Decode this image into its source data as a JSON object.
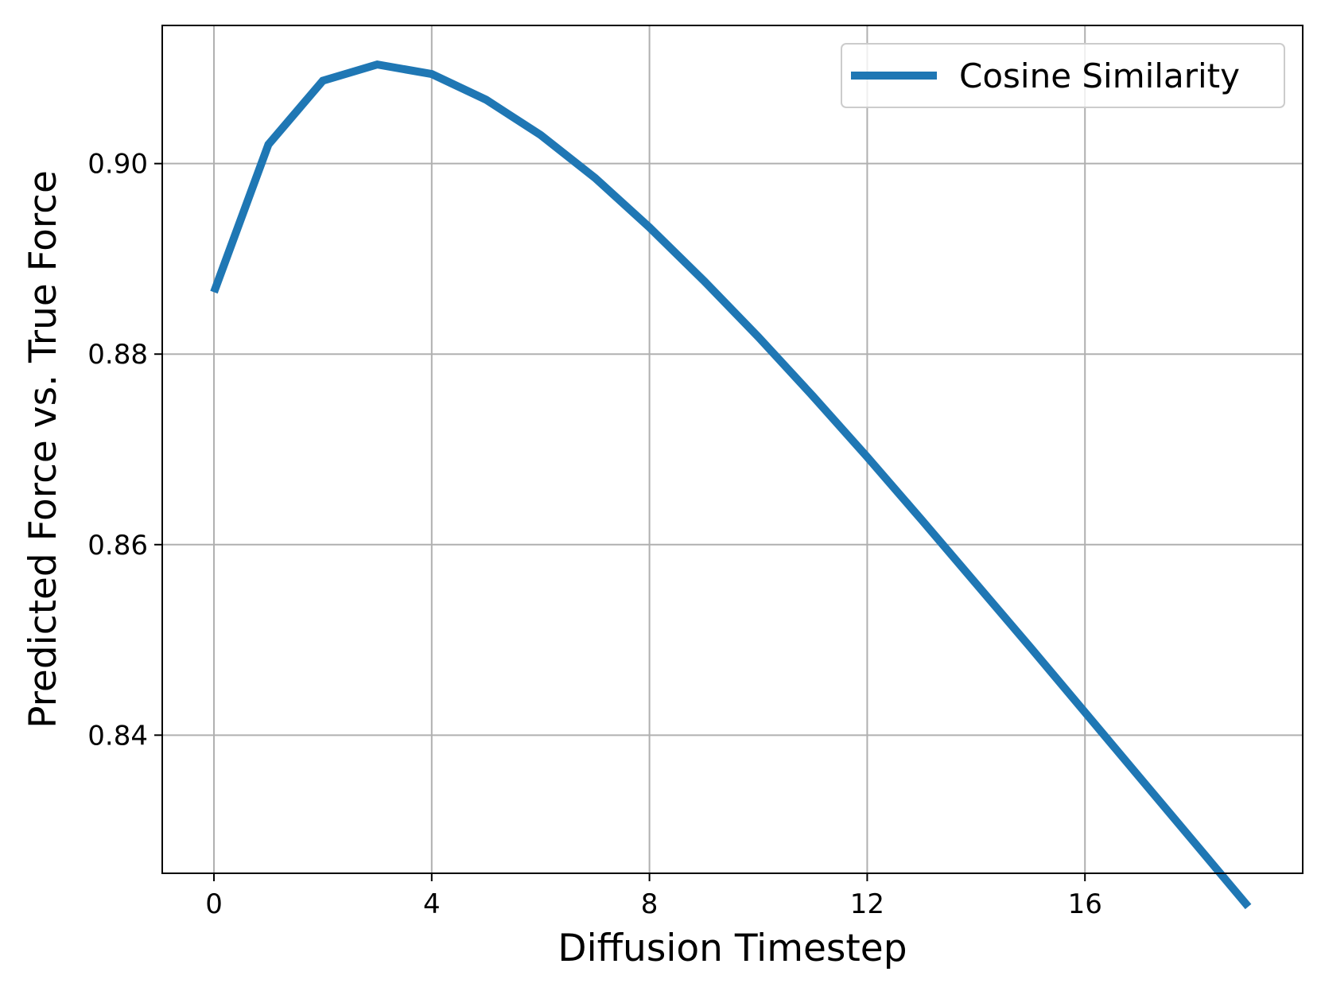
{
  "chart_data": {
    "type": "line",
    "title": "",
    "xlabel": "Diffusion Timestep",
    "ylabel": "Predicted Force vs. True Force",
    "xlim": [
      -0.95,
      20
    ],
    "ylim": [
      0.8255,
      0.9145
    ],
    "x_ticks": [
      0,
      4,
      8,
      12,
      16
    ],
    "x_tick_labels": [
      "0",
      "4",
      "8",
      "12",
      "16"
    ],
    "y_ticks": [
      0.84,
      0.86,
      0.88,
      0.9
    ],
    "y_tick_labels": [
      "0.84",
      "0.86",
      "0.88",
      "0.90"
    ],
    "grid": true,
    "legend_position": "top-right",
    "series": [
      {
        "name": "Cosine Similarity",
        "color": "#1f77b4",
        "x": [
          0,
          1,
          2,
          3,
          4,
          5,
          6,
          7,
          8,
          9,
          10,
          11,
          12,
          13,
          14,
          15,
          16,
          17,
          18,
          19
        ],
        "y": [
          0.8865,
          0.902,
          0.9087,
          0.9104,
          0.9094,
          0.9067,
          0.903,
          0.8985,
          0.8933,
          0.8877,
          0.8818,
          0.8756,
          0.8692,
          0.8626,
          0.8559,
          0.8492,
          0.8424,
          0.8356,
          0.8288,
          0.822
        ]
      }
    ]
  }
}
